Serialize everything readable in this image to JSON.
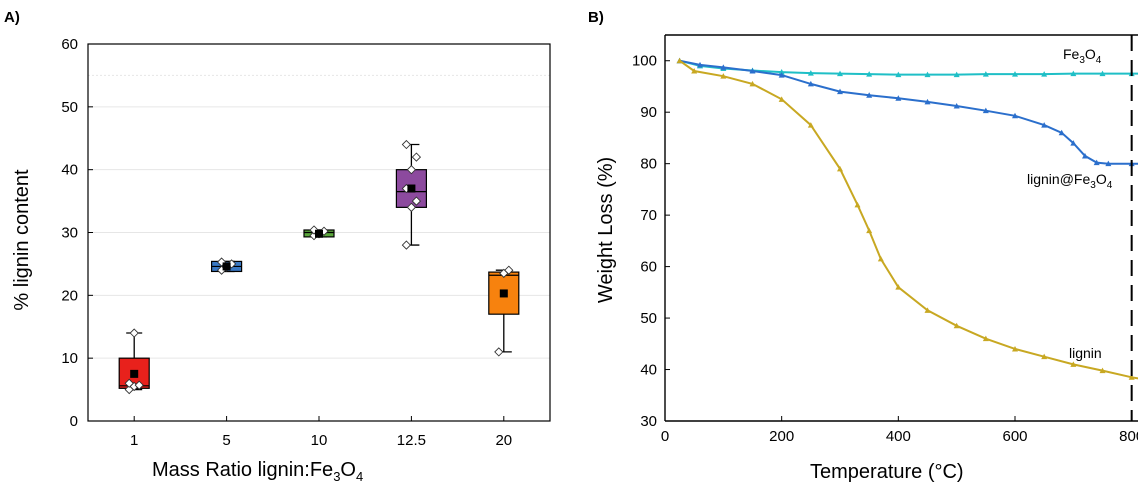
{
  "panel_a_label": "A)",
  "panel_b_label": "B)",
  "chart_data": [
    {
      "type": "box",
      "panel": "A)",
      "xlabel": "Mass Ratio  lignin:Fe3O4",
      "ylabel": "% lignin content",
      "categories": [
        "1",
        "5",
        "10",
        "12.5",
        "20"
      ],
      "ylim": [
        0,
        60
      ],
      "yticks": [
        0,
        10,
        20,
        30,
        40,
        50,
        60
      ],
      "grid": true,
      "boxes": [
        {
          "category": "1",
          "color": "#e8211c",
          "q1": 5.2,
          "median": 5.6,
          "q3": 10.0,
          "whisker_low": 5.0,
          "whisker_high": 14.0,
          "mean": 7.5,
          "points": [
            5.0,
            5.5,
            5.7,
            6.0,
            14.0
          ]
        },
        {
          "category": "5",
          "color": "#3a78c2",
          "q1": 23.8,
          "median": 24.6,
          "q3": 25.4,
          "whisker_low": 23.8,
          "whisker_high": 25.4,
          "mean": 24.6,
          "points": [
            24.0,
            24.5,
            25.0,
            25.3
          ]
        },
        {
          "category": "10",
          "color": "#5aa63c",
          "q1": 29.3,
          "median": 30.0,
          "q3": 30.4,
          "whisker_low": 29.3,
          "whisker_high": 30.4,
          "mean": 29.8,
          "points": [
            29.5,
            29.8,
            30.2,
            30.4
          ]
        },
        {
          "category": "12.5",
          "color": "#8c4a9e",
          "q1": 34.0,
          "median": 36.5,
          "q3": 40.0,
          "whisker_low": 28.0,
          "whisker_high": 44.0,
          "mean": 37.0,
          "points": [
            28.0,
            34.0,
            35.0,
            37.0,
            40.0,
            42.0,
            44.0
          ]
        },
        {
          "category": "20",
          "color": "#f7820e",
          "q1": 17.0,
          "median": 23.2,
          "q3": 23.7,
          "whisker_low": 11.0,
          "whisker_high": 24.0,
          "mean": 20.3,
          "points": [
            11.0,
            23.5,
            24.0
          ]
        }
      ]
    },
    {
      "type": "line",
      "panel": "B)",
      "xlabel": "Temperature (°C)",
      "ylabel": "Weight Loss (%)",
      "xlim": [
        0,
        840
      ],
      "ylim": [
        30,
        105
      ],
      "xticks": [
        0,
        200,
        400,
        600,
        800
      ],
      "yticks": [
        30,
        40,
        50,
        60,
        70,
        80,
        90,
        100
      ],
      "vline_x": 800,
      "series": [
        {
          "name": "Fe3O4",
          "color": "#1fbfc6",
          "x": [
            25,
            60,
            100,
            150,
            200,
            250,
            300,
            350,
            400,
            450,
            500,
            550,
            600,
            650,
            700,
            750,
            800,
            840
          ],
          "y": [
            100,
            99.0,
            98.5,
            98.1,
            97.8,
            97.6,
            97.5,
            97.4,
            97.3,
            97.3,
            97.3,
            97.4,
            97.4,
            97.4,
            97.5,
            97.5,
            97.5,
            97.5
          ]
        },
        {
          "name": "lignin@Fe3O4",
          "color": "#2b6fcc",
          "x": [
            25,
            60,
            100,
            150,
            200,
            250,
            300,
            350,
            400,
            450,
            500,
            550,
            600,
            650,
            680,
            700,
            720,
            740,
            760,
            800,
            840
          ],
          "y": [
            100,
            99.2,
            98.7,
            98.0,
            97.2,
            95.5,
            94.0,
            93.3,
            92.7,
            92.0,
            91.2,
            90.3,
            89.3,
            87.5,
            86.0,
            84.0,
            81.5,
            80.2,
            80.0,
            80.0,
            80.0
          ]
        },
        {
          "name": "lignin",
          "color": "#c8a822",
          "x": [
            25,
            50,
            100,
            150,
            200,
            250,
            300,
            330,
            350,
            370,
            400,
            450,
            500,
            550,
            600,
            650,
            700,
            750,
            800,
            840
          ],
          "y": [
            100,
            98.0,
            97.0,
            95.5,
            92.5,
            87.5,
            79.0,
            72.0,
            67.0,
            61.5,
            56.0,
            51.5,
            48.5,
            46.0,
            44.0,
            42.5,
            41.0,
            39.8,
            38.5,
            37.7
          ]
        }
      ],
      "labels": [
        {
          "series": "Fe3O4",
          "main": "Fe",
          "sub1": "3",
          "mid": "O",
          "sub2": "4"
        },
        {
          "series": "lignin@Fe3O4",
          "main": "lignin@Fe",
          "sub1": "3",
          "mid": "O",
          "sub2": "4"
        },
        {
          "series": "lignin",
          "main": "lignin"
        }
      ]
    }
  ]
}
